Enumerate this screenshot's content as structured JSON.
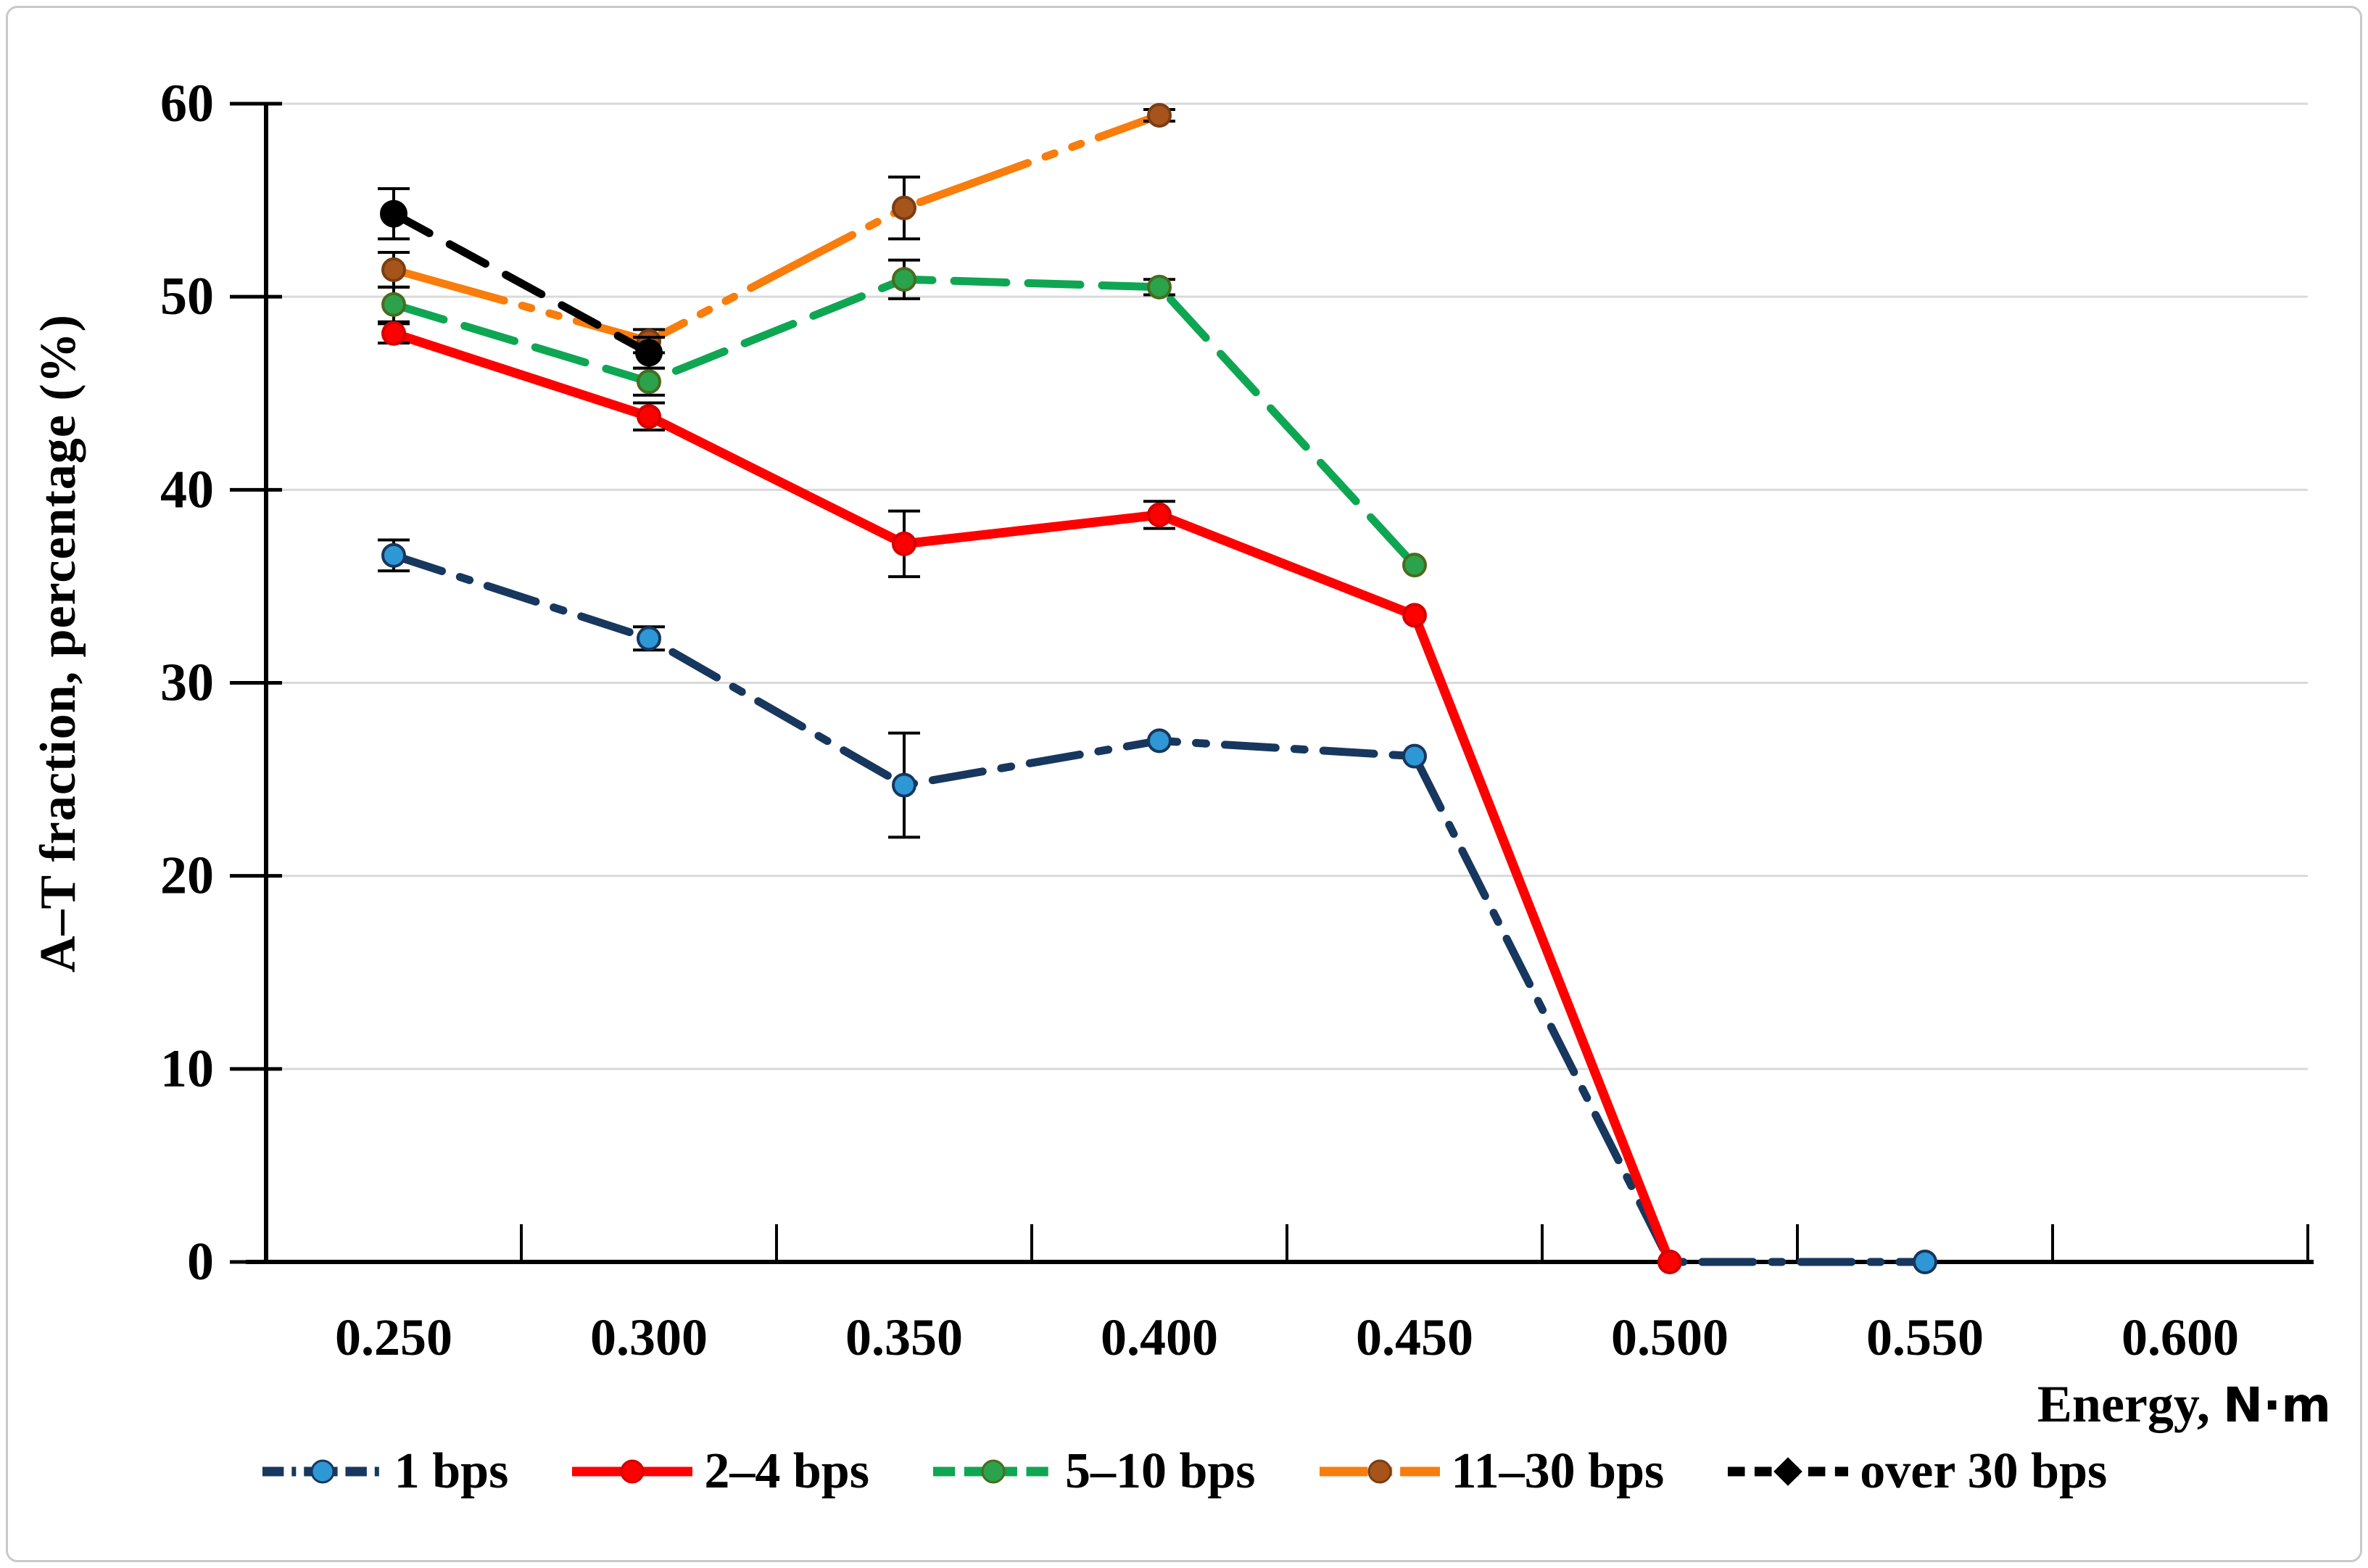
{
  "figure": {
    "background": "#ffffff",
    "border_color": "#c9c9c9"
  },
  "chart_data": {
    "type": "line",
    "title": "",
    "xlabel": "Energy, N·m",
    "xlabel_parts": [
      "Energy,",
      "N·m"
    ],
    "ylabel": "A–T fraction, percentage (%)",
    "x_tick_labels": [
      "0.250",
      "0.300",
      "0.350",
      "0.400",
      "0.450",
      "0.500",
      "0.550",
      "0.600"
    ],
    "y_ticks": [
      0,
      10,
      20,
      30,
      40,
      50,
      60
    ],
    "ylim": [
      0,
      60
    ],
    "grid": "horizontal",
    "gridline_color": "#d9d9d9",
    "axis_color": "#000000",
    "error_bar_color": "#000000",
    "legend_position": "bottom",
    "series": [
      {
        "name": "11–30 bps",
        "style": "dash-dot-dot",
        "line_color": "#f87d0c",
        "marker": "circle",
        "marker_color": "#a6541b",
        "marker_edge": "#7a3e12",
        "points": [
          {
            "x": "0.250",
            "y": 51.4,
            "err": 0.9
          },
          {
            "x": "0.300",
            "y": 47.7,
            "err": 0.6
          },
          {
            "x": "0.350",
            "y": 54.6,
            "err": 1.6
          },
          {
            "x": "0.400",
            "y": 59.4,
            "err": 0.3
          }
        ]
      },
      {
        "name": "over 30 bps",
        "style": "dash",
        "line_color": "#000000",
        "marker": "circle",
        "marker_color": "#000000",
        "marker_edge": "#000000",
        "points": [
          {
            "x": "0.250",
            "y": 54.3,
            "err": 1.3
          },
          {
            "x": "0.300",
            "y": 47.1,
            "err": 0.8
          }
        ]
      },
      {
        "name": "5–10 bps",
        "style": "long-dash",
        "line_color": "#0fa653",
        "marker": "circle",
        "marker_color": "#2ba24c",
        "marker_edge": "#4a6b1e",
        "points": [
          {
            "x": "0.250",
            "y": 49.6,
            "err": 0.9
          },
          {
            "x": "0.300",
            "y": 45.6,
            "err": 0.7
          },
          {
            "x": "0.350",
            "y": 50.9,
            "err": 1.0
          },
          {
            "x": "0.400",
            "y": 50.5,
            "err": 0.4
          },
          {
            "x": "0.450",
            "y": 36.1,
            "err": 0
          }
        ]
      },
      {
        "name": "1 bps",
        "style": "dash-dot",
        "line_color": "#17375e",
        "marker": "circle",
        "marker_color": "#2e97d5",
        "marker_edge": "#17375e",
        "points": [
          {
            "x": "0.250",
            "y": 36.6,
            "err": 0.8
          },
          {
            "x": "0.300",
            "y": 32.3,
            "err": 0.6
          },
          {
            "x": "0.350",
            "y": 24.7,
            "err": 2.7
          },
          {
            "x": "0.400",
            "y": 27.0,
            "err": 0
          },
          {
            "x": "0.450",
            "y": 26.2,
            "err": 0
          },
          {
            "x": "0.500",
            "y": 0,
            "err": 0,
            "show_marker": false
          },
          {
            "x": "0.550",
            "y": 0,
            "err": 0
          }
        ]
      },
      {
        "name": "2–4 bps",
        "style": "solid",
        "line_color": "#ff0000",
        "marker": "circle",
        "marker_color": "#ff0000",
        "marker_edge": "#d40000",
        "points": [
          {
            "x": "0.250",
            "y": 48.1,
            "err": 0.5
          },
          {
            "x": "0.300",
            "y": 43.8,
            "err": 0.7
          },
          {
            "x": "0.350",
            "y": 37.2,
            "err": 1.7
          },
          {
            "x": "0.400",
            "y": 38.7,
            "err": 0.7
          },
          {
            "x": "0.450",
            "y": 33.5,
            "err": 0
          },
          {
            "x": "0.500",
            "y": 0,
            "err": 0
          }
        ]
      }
    ],
    "legend_order": [
      "1 bps",
      "2–4 bps",
      "5–10 bps",
      "11–30 bps",
      "over 30 bps"
    ]
  }
}
